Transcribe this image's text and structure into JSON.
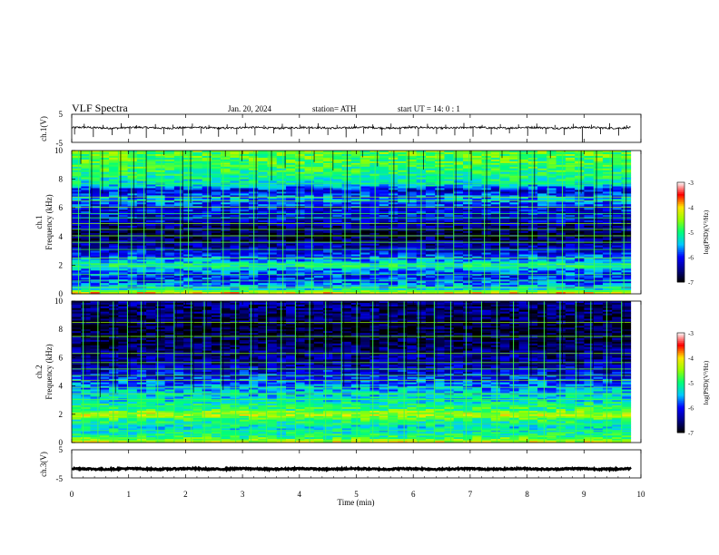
{
  "header": {
    "title": "VLF  Spectra",
    "date": "Jan. 20, 2024",
    "station": "station= ATH",
    "start": "start  UT  =   14: 0   : 1"
  },
  "chart_data": [
    {
      "id": "ch1-waveform",
      "type": "line",
      "ylabel": "ch.1(V)",
      "ylim": [
        -5,
        5
      ],
      "yticks": [
        "5",
        "-5"
      ],
      "xlim": [
        0,
        10
      ],
      "x_data_end": 9.82,
      "baseline": 0.2,
      "noise_amplitude": 0.35,
      "color": "#000000",
      "spikes": [
        {
          "x": 0.05,
          "y": -2.2
        },
        {
          "x": 0.22,
          "y": 1.6
        },
        {
          "x": 0.38,
          "y": -3.1
        },
        {
          "x": 0.55,
          "y": 1.2
        },
        {
          "x": 0.71,
          "y": -2.4
        },
        {
          "x": 0.87,
          "y": 1.8
        },
        {
          "x": 1.02,
          "y": -2.0
        },
        {
          "x": 1.14,
          "y": 1.1
        },
        {
          "x": 1.31,
          "y": -3.4
        },
        {
          "x": 1.47,
          "y": 1.5
        },
        {
          "x": 1.62,
          "y": -2.1
        },
        {
          "x": 1.78,
          "y": 1.3
        },
        {
          "x": 1.95,
          "y": -2.6
        },
        {
          "x": 2.12,
          "y": 1.7
        },
        {
          "x": 2.27,
          "y": -1.9
        },
        {
          "x": 2.41,
          "y": 1.2
        },
        {
          "x": 2.58,
          "y": -3.0
        },
        {
          "x": 2.73,
          "y": 1.4
        },
        {
          "x": 2.9,
          "y": -2.2
        },
        {
          "x": 3.05,
          "y": 1.9
        },
        {
          "x": 3.22,
          "y": -2.5
        },
        {
          "x": 3.38,
          "y": 1.1
        },
        {
          "x": 3.55,
          "y": -1.8
        },
        {
          "x": 3.7,
          "y": 1.6
        },
        {
          "x": 3.86,
          "y": -2.9
        },
        {
          "x": 4.01,
          "y": 1.3
        },
        {
          "x": 4.17,
          "y": -2.0
        },
        {
          "x": 4.33,
          "y": 1.8
        },
        {
          "x": 4.5,
          "y": -2.4
        },
        {
          "x": 4.66,
          "y": 1.2
        },
        {
          "x": 4.82,
          "y": -3.2
        },
        {
          "x": 4.97,
          "y": 1.5
        },
        {
          "x": 5.13,
          "y": -1.9
        },
        {
          "x": 5.29,
          "y": 1.4
        },
        {
          "x": 5.45,
          "y": -2.6
        },
        {
          "x": 5.61,
          "y": 1.7
        },
        {
          "x": 5.77,
          "y": -2.1
        },
        {
          "x": 5.93,
          "y": 1.1
        },
        {
          "x": 6.09,
          "y": -2.8
        },
        {
          "x": 6.25,
          "y": 1.6
        },
        {
          "x": 6.41,
          "y": -2.0
        },
        {
          "x": 6.57,
          "y": 1.3
        },
        {
          "x": 6.73,
          "y": -2.5
        },
        {
          "x": 6.89,
          "y": 1.9
        },
        {
          "x": 7.05,
          "y": -3.0
        },
        {
          "x": 7.21,
          "y": 1.2
        },
        {
          "x": 7.37,
          "y": -2.2
        },
        {
          "x": 7.53,
          "y": 1.5
        },
        {
          "x": 7.69,
          "y": -1.8
        },
        {
          "x": 7.85,
          "y": 1.4
        },
        {
          "x": 8.01,
          "y": -2.7
        },
        {
          "x": 8.17,
          "y": 1.7
        },
        {
          "x": 8.33,
          "y": -2.0
        },
        {
          "x": 8.49,
          "y": 1.2
        },
        {
          "x": 8.65,
          "y": -2.4
        },
        {
          "x": 8.81,
          "y": 1.6
        },
        {
          "x": 8.97,
          "y": -5.0
        },
        {
          "x": 9.13,
          "y": 1.3
        },
        {
          "x": 9.29,
          "y": -2.1
        },
        {
          "x": 9.45,
          "y": 1.8
        },
        {
          "x": 9.61,
          "y": -2.6
        },
        {
          "x": 9.75,
          "y": 1.1
        }
      ]
    },
    {
      "id": "ch1-spectrogram",
      "type": "heatmap",
      "ylabel_line1": "ch.1",
      "ylabel_line2": "Frequency  (kHz)",
      "ylim": [
        0,
        10
      ],
      "yticks": [
        "10",
        "8",
        "6",
        "4",
        "2",
        "0"
      ],
      "xlim": [
        0,
        10
      ],
      "x_data_end": 9.82,
      "colorbar": {
        "label": "log(PSD)(V²/Hz)",
        "range": [
          -7,
          -3
        ],
        "ticks": [
          "-3",
          "-4",
          "-5",
          "-6",
          "-7"
        ]
      },
      "profile": [
        {
          "f": 0.0,
          "v": -3.8
        },
        {
          "f": 0.3,
          "v": -5.2
        },
        {
          "f": 0.8,
          "v": -5.8
        },
        {
          "f": 1.2,
          "v": -6.0
        },
        {
          "f": 1.6,
          "v": -5.7
        },
        {
          "f": 2.0,
          "v": -5.0
        },
        {
          "f": 2.3,
          "v": -5.6
        },
        {
          "f": 3.0,
          "v": -6.2
        },
        {
          "f": 3.6,
          "v": -6.5
        },
        {
          "f": 4.2,
          "v": -6.8
        },
        {
          "f": 4.7,
          "v": -6.5
        },
        {
          "f": 5.2,
          "v": -6.2
        },
        {
          "f": 6.0,
          "v": -6.1
        },
        {
          "f": 6.6,
          "v": -5.6
        },
        {
          "f": 7.2,
          "v": -6.2
        },
        {
          "f": 7.6,
          "v": -5.3
        },
        {
          "f": 8.4,
          "v": -5.0
        },
        {
          "f": 9.2,
          "v": -4.8
        },
        {
          "f": 10.0,
          "v": -4.7
        }
      ],
      "tone_lines_khz": [
        0.2,
        0.45,
        0.9,
        1.35,
        1.9,
        2.1,
        2.5,
        3.1,
        3.6,
        4.05,
        4.5,
        4.9,
        5.3,
        5.6,
        6.05,
        6.5,
        6.75,
        7.7,
        8.35,
        9.0
      ],
      "burst_times_min": [
        0.12,
        0.31,
        0.5,
        0.82,
        1.05,
        1.27,
        1.58,
        1.91,
        2.05,
        2.39,
        2.66,
        2.95,
        3.2,
        3.47,
        3.71,
        3.96,
        4.22,
        4.55,
        4.8,
        5.07,
        5.33,
        5.62,
        5.88,
        6.14,
        6.43,
        6.71,
        6.98,
        7.25,
        7.52,
        7.84,
        8.09,
        8.37,
        8.62,
        8.91,
        9.18,
        9.46,
        9.7
      ]
    },
    {
      "id": "ch2-spectrogram",
      "type": "heatmap",
      "ylabel_line1": "ch.2",
      "ylabel_line2": "Frequency  (kHz)",
      "ylim": [
        0,
        10
      ],
      "yticks": [
        "10",
        "8",
        "6",
        "4",
        "2",
        "0"
      ],
      "xlim": [
        0,
        10
      ],
      "x_data_end": 9.82,
      "colorbar": {
        "label": "log(PSD)(V²/Hz)",
        "range": [
          -7,
          -3
        ],
        "ticks": [
          "-3",
          "-4",
          "-5",
          "-6",
          "-7"
        ]
      },
      "profile": [
        {
          "f": 0.0,
          "v": -4.2
        },
        {
          "f": 0.4,
          "v": -5.0
        },
        {
          "f": 1.0,
          "v": -5.3
        },
        {
          "f": 1.6,
          "v": -5.0
        },
        {
          "f": 2.0,
          "v": -4.2
        },
        {
          "f": 2.3,
          "v": -4.9
        },
        {
          "f": 3.0,
          "v": -5.3
        },
        {
          "f": 3.5,
          "v": -5.4
        },
        {
          "f": 4.2,
          "v": -5.8
        },
        {
          "f": 4.8,
          "v": -6.1
        },
        {
          "f": 5.5,
          "v": -6.4
        },
        {
          "f": 6.2,
          "v": -6.5
        },
        {
          "f": 7.0,
          "v": -6.7
        },
        {
          "f": 8.0,
          "v": -6.8
        },
        {
          "f": 9.0,
          "v": -6.6
        },
        {
          "f": 10.0,
          "v": -6.5
        }
      ],
      "tone_lines_khz": [
        0.15,
        0.5,
        0.85,
        1.3,
        1.75,
        2.05,
        2.55,
        3.05,
        3.45,
        3.9,
        4.4,
        4.75,
        5.2,
        5.65,
        6.3,
        7.5,
        8.5
      ],
      "burst_times_min": [
        0.2,
        0.46,
        0.73,
        0.98,
        1.22,
        1.51,
        1.8,
        2.1,
        2.33,
        2.62,
        2.88,
        3.15,
        3.42,
        3.68,
        3.93,
        4.18,
        4.46,
        4.74,
        5.01,
        5.29,
        5.56,
        5.84,
        6.09,
        6.37,
        6.66,
        6.93,
        7.2,
        7.47,
        7.76,
        8.03,
        8.3,
        8.58,
        8.86,
        9.12,
        9.4,
        9.66
      ]
    },
    {
      "id": "ch3-waveform",
      "type": "line",
      "ylabel": "ch.3(V)",
      "ylim": [
        -5,
        5
      ],
      "yticks": [
        "5",
        "-5"
      ],
      "xlim": [
        0,
        10
      ],
      "x_data_end": 9.82,
      "baseline": -1.8,
      "noise_amplitude": 0.25,
      "color": "#000000",
      "spikes": []
    }
  ],
  "x_axis": {
    "label": "Time  (min)",
    "ticks": [
      "0",
      "1",
      "2",
      "3",
      "4",
      "5",
      "6",
      "7",
      "8",
      "9",
      "10"
    ]
  }
}
